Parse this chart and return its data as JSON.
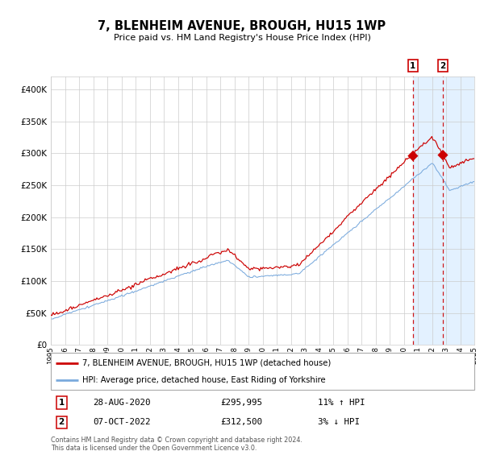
{
  "title": "7, BLENHEIM AVENUE, BROUGH, HU15 1WP",
  "subtitle": "Price paid vs. HM Land Registry's House Price Index (HPI)",
  "legend_line1": "7, BLENHEIM AVENUE, BROUGH, HU15 1WP (detached house)",
  "legend_line2": "HPI: Average price, detached house, East Riding of Yorkshire",
  "annotation1_label": "1",
  "annotation1_date": "28-AUG-2020",
  "annotation1_price": "£295,995",
  "annotation1_hpi": "11% ↑ HPI",
  "annotation2_label": "2",
  "annotation2_date": "07-OCT-2022",
  "annotation2_price": "£312,500",
  "annotation2_hpi": "3% ↓ HPI",
  "footer": "Contains HM Land Registry data © Crown copyright and database right 2024.\nThis data is licensed under the Open Government Licence v3.0.",
  "red_color": "#cc0000",
  "blue_color": "#7aaadd",
  "shade_color": "#ddeeff",
  "bg_color": "#ffffff",
  "grid_color": "#cccccc",
  "ylim": [
    0,
    420000
  ],
  "yticks": [
    0,
    50000,
    100000,
    150000,
    200000,
    250000,
    300000,
    350000,
    400000
  ],
  "year_start": 1995,
  "year_end": 2025,
  "sale1_year": 2020.65,
  "sale1_value": 295995,
  "sale2_year": 2022.77,
  "sale2_value": 312500
}
